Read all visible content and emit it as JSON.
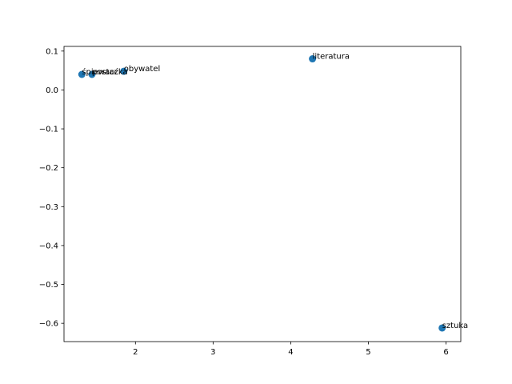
{
  "chart_data": {
    "type": "scatter",
    "title": "",
    "xlabel": "",
    "ylabel": "",
    "xlim": [
      1.08,
      6.19
    ],
    "ylim": [
      -0.647,
      0.112
    ],
    "xticks": [
      2,
      3,
      4,
      5,
      6
    ],
    "xtick_labels": [
      "2",
      "3",
      "4",
      "5",
      "6"
    ],
    "yticks": [
      0.1,
      0.0,
      -0.1,
      -0.2,
      -0.3,
      -0.4,
      -0.5,
      -0.6
    ],
    "ytick_labels": [
      "0.1",
      "0.0",
      "−0.1",
      "−0.2",
      "−0.3",
      "−0.4",
      "−0.5",
      "−0.6"
    ],
    "grid": false,
    "legend": "none",
    "marker_color": "#1f77b4",
    "points": [
      {
        "x": 1.31,
        "y": 0.04,
        "label": "śpiewaczka"
      },
      {
        "x": 1.44,
        "y": 0.04,
        "label": "postać"
      },
      {
        "x": 1.85,
        "y": 0.048,
        "label": "obywatel"
      },
      {
        "x": 4.28,
        "y": 0.08,
        "label": "literatura"
      },
      {
        "x": 5.95,
        "y": -0.612,
        "label": "sztuka"
      }
    ]
  }
}
